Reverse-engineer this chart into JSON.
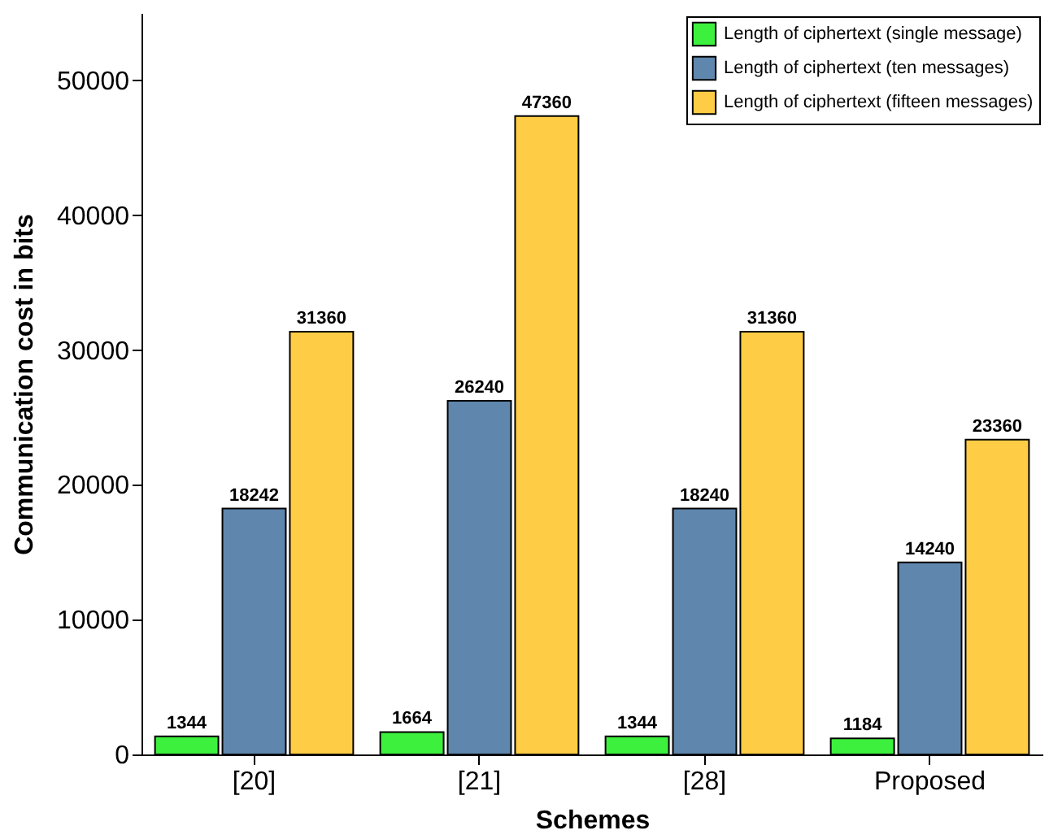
{
  "chart_data": {
    "type": "bar",
    "xlabel": "Schemes",
    "ylabel": "Communication cost in bits",
    "categories": [
      "[20]",
      "[21]",
      "[28]",
      "Proposed"
    ],
    "series": [
      {
        "name": "Length of ciphertext (single message)",
        "color": "#3ef03e",
        "values": [
          1344,
          1664,
          1344,
          1184
        ]
      },
      {
        "name": "Length of ciphertext (ten messages)",
        "color": "#5f86ad",
        "values": [
          18242,
          26240,
          18240,
          14240
        ]
      },
      {
        "name": "Length of ciphertext (fifteen messages)",
        "color": "#ffcd45",
        "values": [
          31360,
          47360,
          31360,
          23360
        ]
      }
    ],
    "ylim": [
      0,
      55000
    ],
    "yticks": [
      0,
      10000,
      20000,
      30000,
      40000,
      50000
    ],
    "grid": false,
    "legend": "top right",
    "data_labels": true
  }
}
